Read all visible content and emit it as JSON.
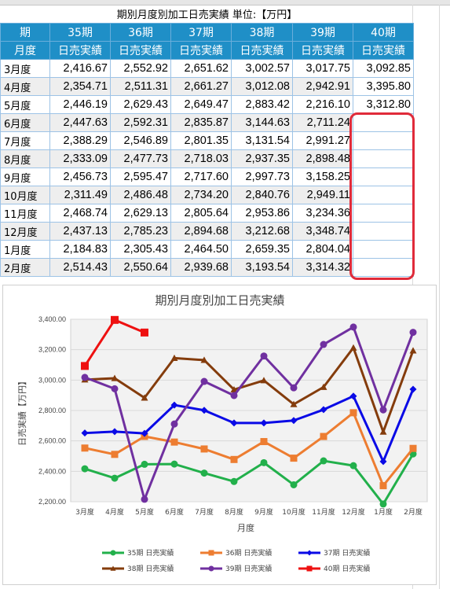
{
  "sheet": {
    "column_letters": [
      "A",
      "B",
      "C",
      "D",
      "E",
      "F",
      "G",
      "H"
    ],
    "title": "期別月度別加工日売実績 単位:【万円】",
    "header_row1": [
      "期",
      "35期",
      "36期",
      "37期",
      "38期",
      "39期",
      "40期"
    ],
    "header_row2": [
      "月度",
      "日売実績",
      "日売実績",
      "日売実績",
      "日売実績",
      "日売実績",
      "日売実績"
    ],
    "rows": [
      {
        "month": "3月度",
        "v": [
          "2,416.67",
          "2,552.92",
          "2,651.62",
          "3,002.57",
          "3,017.75",
          "3,092.85"
        ]
      },
      {
        "month": "4月度",
        "v": [
          "2,354.71",
          "2,511.31",
          "2,661.27",
          "3,012.08",
          "2,942.91",
          "3,395.80"
        ]
      },
      {
        "month": "5月度",
        "v": [
          "2,446.19",
          "2,629.43",
          "2,649.47",
          "2,883.42",
          "2,216.10",
          "3,312.80"
        ]
      },
      {
        "month": "6月度",
        "v": [
          "2,447.63",
          "2,592.31",
          "2,835.87",
          "3,144.63",
          "2,711.24",
          ""
        ]
      },
      {
        "month": "7月度",
        "v": [
          "2,388.29",
          "2,546.89",
          "2,801.35",
          "3,131.54",
          "2,991.27",
          ""
        ]
      },
      {
        "month": "8月度",
        "v": [
          "2,333.09",
          "2,477.73",
          "2,718.03",
          "2,937.35",
          "2,898.48",
          ""
        ]
      },
      {
        "month": "9月度",
        "v": [
          "2,456.73",
          "2,595.47",
          "2,717.60",
          "2,997.73",
          "3,158.25",
          ""
        ]
      },
      {
        "month": "10月度",
        "v": [
          "2,311.49",
          "2,486.48",
          "2,734.20",
          "2,840.76",
          "2,949.11",
          ""
        ]
      },
      {
        "month": "11月度",
        "v": [
          "2,468.74",
          "2,629.13",
          "2,805.64",
          "2,953.86",
          "3,234.36",
          ""
        ]
      },
      {
        "month": "12月度",
        "v": [
          "2,437.13",
          "2,785.23",
          "2,894.68",
          "3,212.68",
          "3,348.74",
          ""
        ]
      },
      {
        "month": "1月度",
        "v": [
          "2,184.83",
          "2,305.43",
          "2,464.50",
          "2,659.35",
          "2,804.04",
          ""
        ]
      },
      {
        "month": "2月度",
        "v": [
          "2,514.43",
          "2,550.64",
          "2,939.68",
          "3,193.54",
          "3,314.32",
          ""
        ]
      }
    ]
  },
  "highlight_color": "#e02b3a",
  "chart_data": {
    "type": "line",
    "title": "期別月度別加工日売実績",
    "xlabel": "月度",
    "ylabel": "日売実績【万円】",
    "ylim": [
      2200,
      3400
    ],
    "yticks": [
      "2,200.00",
      "2,400.00",
      "2,600.00",
      "2,800.00",
      "3,000.00",
      "3,200.00",
      "3,400.00"
    ],
    "categories": [
      "3月度",
      "4月度",
      "5月度",
      "6月度",
      "7月度",
      "8月度",
      "9月度",
      "10月度",
      "11月度",
      "12月度",
      "1月度",
      "2月度"
    ],
    "legend_position": "bottom",
    "series": [
      {
        "name": "35期 日売実績",
        "color": "#22b04b",
        "marker": "circle",
        "values": [
          2416.67,
          2354.71,
          2446.19,
          2447.63,
          2388.29,
          2333.09,
          2456.73,
          2311.49,
          2468.74,
          2437.13,
          2184.83,
          2514.43
        ]
      },
      {
        "name": "36期 日売実績",
        "color": "#ed7d31",
        "marker": "square",
        "values": [
          2552.92,
          2511.31,
          2629.43,
          2592.31,
          2546.89,
          2477.73,
          2595.47,
          2486.48,
          2629.13,
          2785.23,
          2305.43,
          2550.64
        ]
      },
      {
        "name": "37期 日売実績",
        "color": "#0a0ae6",
        "marker": "diamond",
        "values": [
          2651.62,
          2661.27,
          2649.47,
          2835.87,
          2801.35,
          2718.03,
          2717.6,
          2734.2,
          2805.64,
          2894.68,
          2464.5,
          2939.68
        ]
      },
      {
        "name": "38期 日売実績",
        "color": "#843c0c",
        "marker": "triangle",
        "values": [
          3002.57,
          3012.08,
          2883.42,
          3144.63,
          3131.54,
          2937.35,
          2997.73,
          2840.76,
          2953.86,
          3212.68,
          2659.35,
          3193.54
        ]
      },
      {
        "name": "39期 日売実績",
        "color": "#7030a0",
        "marker": "circle",
        "values": [
          3017.75,
          2942.91,
          2216.1,
          2711.24,
          2991.27,
          2898.48,
          3158.25,
          2949.11,
          3234.36,
          3348.74,
          2804.04,
          3314.32
        ]
      },
      {
        "name": "40期 日売実績",
        "color": "#ee1111",
        "marker": "square",
        "values": [
          3092.85,
          3395.8,
          3312.8,
          null,
          null,
          null,
          null,
          null,
          null,
          null,
          null,
          null
        ]
      }
    ]
  }
}
